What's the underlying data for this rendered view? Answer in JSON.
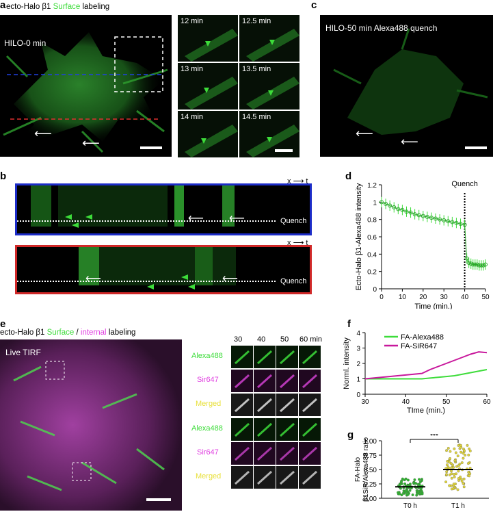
{
  "colors": {
    "green": "#3ddc3a",
    "magenta": "#e040e0",
    "yellow": "#e8e03a",
    "blue_frame": "#1c2cc8",
    "red_frame": "#d02828"
  },
  "panel_labels": {
    "a": "a",
    "b": "b",
    "c": "c",
    "d": "d",
    "e": "e",
    "f": "f",
    "g": "g"
  },
  "panel_a": {
    "caption_prefix": "ecto-Halo β1",
    "caption_surface": "Surface",
    "caption_suffix": "labeling",
    "image_label": "HILO-0 min",
    "tiles": [
      "12 min",
      "12.5 min",
      "13 min",
      "13.5 min",
      "14 min",
      "14.5 min"
    ]
  },
  "panel_b": {
    "axis_x": "x",
    "axis_t": "t",
    "quench_label": "Quench"
  },
  "panel_c": {
    "image_label": "HILO-50 min Alexa488 quench"
  },
  "panel_d": {
    "chart_data": {
      "type": "line",
      "xlabel": "Time (min.)",
      "ylabel": "Ecto-Halo β1-Alexa488 intensity",
      "xlim": [
        0,
        50
      ],
      "ylim": [
        0,
        1.2
      ],
      "xticks": [
        "0",
        "10",
        "20",
        "30",
        "40",
        "50"
      ],
      "yticks": [
        "0",
        "0.2",
        "0.4",
        "0.6",
        "0.8",
        "1",
        "1.2"
      ],
      "annotation": "Quench",
      "quench_x": 40,
      "x": [
        0,
        2,
        4,
        6,
        8,
        10,
        12,
        14,
        16,
        18,
        20,
        22,
        24,
        26,
        28,
        30,
        32,
        34,
        36,
        38,
        40,
        41,
        42,
        43,
        44,
        45,
        46,
        47,
        48,
        49,
        50
      ],
      "y": [
        1.0,
        0.98,
        0.96,
        0.94,
        0.92,
        0.91,
        0.89,
        0.88,
        0.86,
        0.85,
        0.84,
        0.83,
        0.82,
        0.81,
        0.8,
        0.79,
        0.78,
        0.77,
        0.76,
        0.75,
        0.74,
        0.35,
        0.3,
        0.29,
        0.28,
        0.28,
        0.28,
        0.27,
        0.27,
        0.27,
        0.28
      ]
    }
  },
  "panel_e": {
    "caption_prefix": "ecto-Halo β1",
    "caption_surface": "Surface",
    "caption_sep": "/",
    "caption_internal": "internal",
    "caption_suffix": "labeling",
    "image_label": "Live TIRF",
    "time_labels": [
      "30",
      "40",
      "50",
      "60 min"
    ],
    "rows": [
      "Alexa488",
      "Sir647",
      "Merged",
      "Alexa488",
      "Sir647",
      "Merged"
    ]
  },
  "panel_f": {
    "chart_data": {
      "type": "line",
      "xlabel": "TIme (min.)",
      "ylabel": "Norml. intensity",
      "xlim": [
        30,
        60
      ],
      "ylim": [
        0,
        4
      ],
      "xticks": [
        "30",
        "40",
        "50",
        "60"
      ],
      "yticks": [
        "0",
        "1",
        "2",
        "3",
        "4"
      ],
      "series": [
        {
          "name": "FA-Alexa488",
          "x": [
            30,
            32,
            34,
            36,
            38,
            40,
            42,
            44,
            46,
            48,
            50,
            52,
            54,
            56,
            58,
            60
          ],
          "values": [
            1.0,
            1.0,
            1.0,
            1.0,
            1.0,
            1.0,
            1.0,
            1.0,
            1.05,
            1.1,
            1.15,
            1.2,
            1.3,
            1.4,
            1.5,
            1.6
          ]
        },
        {
          "name": "FA-SiR647",
          "x": [
            30,
            32,
            34,
            36,
            38,
            40,
            42,
            44,
            46,
            48,
            50,
            52,
            54,
            56,
            58,
            60
          ],
          "values": [
            1.0,
            1.05,
            1.1,
            1.15,
            1.2,
            1.25,
            1.3,
            1.35,
            1.6,
            1.8,
            2.0,
            2.2,
            2.4,
            2.6,
            2.75,
            2.7
          ]
        }
      ]
    }
  },
  "panel_g": {
    "chart_data": {
      "type": "scatter",
      "ylabel": "FA-Halo β1SiR/Alexa488 ratio",
      "categories": [
        "T0 h",
        "T1 h"
      ],
      "means": [
        0.2,
        0.5
      ],
      "ylim": [
        0,
        1.0
      ],
      "yticks": [
        "0.00",
        "0.25",
        "0.50",
        "0.75",
        "1.00"
      ],
      "significance": "***"
    }
  }
}
